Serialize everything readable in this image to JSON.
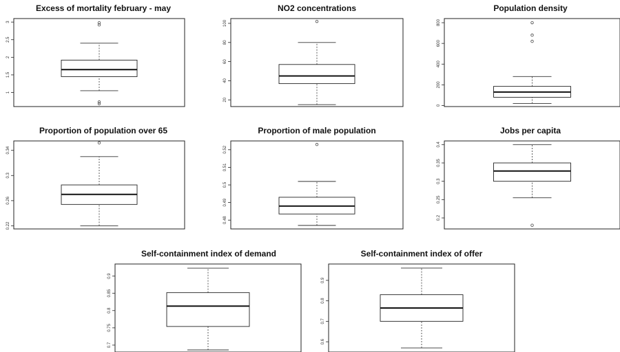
{
  "chart_data": [
    {
      "type": "box",
      "title": "Excess of mortality february - may",
      "yticks": [
        1.0,
        1.5,
        2.0,
        2.5,
        3.0
      ],
      "ylim": [
        0.6,
        3.1
      ],
      "min": 1.05,
      "q1": 1.45,
      "median": 1.65,
      "q3": 1.92,
      "max": 2.4,
      "outliers": [
        2.92,
        2.98,
        0.68,
        0.73
      ]
    },
    {
      "type": "box",
      "title": "NO2 concentrations",
      "yticks": [
        20,
        40,
        60,
        80,
        100
      ],
      "ylim": [
        13,
        105
      ],
      "min": 15,
      "q1": 37,
      "median": 45,
      "q3": 57,
      "max": 80,
      "outliers": [
        102
      ]
    },
    {
      "type": "box",
      "title": "Population density",
      "yticks": [
        0,
        200,
        400,
        600,
        800
      ],
      "ylim": [
        -10,
        840
      ],
      "min": 20,
      "q1": 80,
      "median": 130,
      "q3": 185,
      "max": 280,
      "outliers": [
        620,
        680,
        800
      ]
    },
    {
      "type": "box",
      "title": "Proportion of population over 65",
      "yticks": [
        0.22,
        0.26,
        0.3,
        0.34
      ],
      "ylim": [
        0.215,
        0.355
      ],
      "min": 0.22,
      "q1": 0.254,
      "median": 0.27,
      "q3": 0.285,
      "max": 0.33,
      "outliers": [
        0.352
      ]
    },
    {
      "type": "box",
      "title": "Proportion of male population",
      "yticks": [
        0.48,
        0.49,
        0.5,
        0.51,
        0.52
      ],
      "ylim": [
        0.475,
        0.525
      ],
      "min": 0.477,
      "q1": 0.4835,
      "median": 0.488,
      "q3": 0.493,
      "max": 0.502,
      "outliers": [
        0.523
      ]
    },
    {
      "type": "box",
      "title": "Jobs per capita",
      "yticks": [
        0.2,
        0.25,
        0.3,
        0.35,
        0.4
      ],
      "ylim": [
        0.17,
        0.41
      ],
      "min": 0.255,
      "q1": 0.3,
      "median": 0.328,
      "q3": 0.35,
      "max": 0.4,
      "outliers": [
        0.18
      ]
    },
    {
      "type": "box",
      "title": "Self-containment index of demand",
      "yticks": [
        0.7,
        0.75,
        0.8,
        0.85,
        0.9
      ],
      "ylim": [
        0.68,
        0.935
      ],
      "min": 0.686,
      "q1": 0.754,
      "median": 0.813,
      "q3": 0.852,
      "max": 0.923,
      "outliers": []
    },
    {
      "type": "box",
      "title": "Self-containment index of offer",
      "yticks": [
        0.6,
        0.7,
        0.8,
        0.9
      ],
      "ylim": [
        0.55,
        0.98
      ],
      "min": 0.57,
      "q1": 0.7,
      "median": 0.765,
      "q3": 0.83,
      "max": 0.96,
      "outliers": []
    }
  ]
}
